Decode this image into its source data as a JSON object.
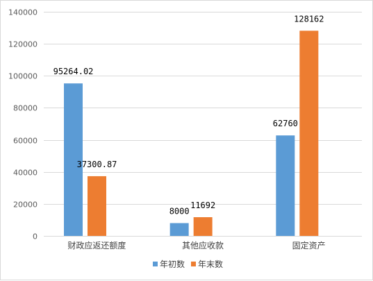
{
  "chart_data": {
    "type": "bar",
    "categories": [
      "财政应返还额度",
      "其他应收款",
      "固定资产"
    ],
    "series": [
      {
        "name": "年初数",
        "values": [
          95264.02,
          8000,
          62760
        ],
        "labels": [
          "95264.02",
          "8000",
          "62760"
        ],
        "color": "#5b9bd5"
      },
      {
        "name": "年末数",
        "values": [
          37300.87,
          11692,
          128162
        ],
        "labels": [
          "37300.87",
          "11692",
          "128162"
        ],
        "color": "#ed7d31"
      }
    ],
    "ylim": [
      0,
      140000
    ],
    "yticks": [
      0,
      20000,
      40000,
      60000,
      80000,
      100000,
      120000,
      140000
    ],
    "ytick_labels": [
      "0",
      "20000",
      "40000",
      "60000",
      "80000",
      "100000",
      "120000",
      "140000"
    ],
    "grid": true,
    "legend_position": "bottom",
    "gridline_color": "#d9d9d9"
  }
}
